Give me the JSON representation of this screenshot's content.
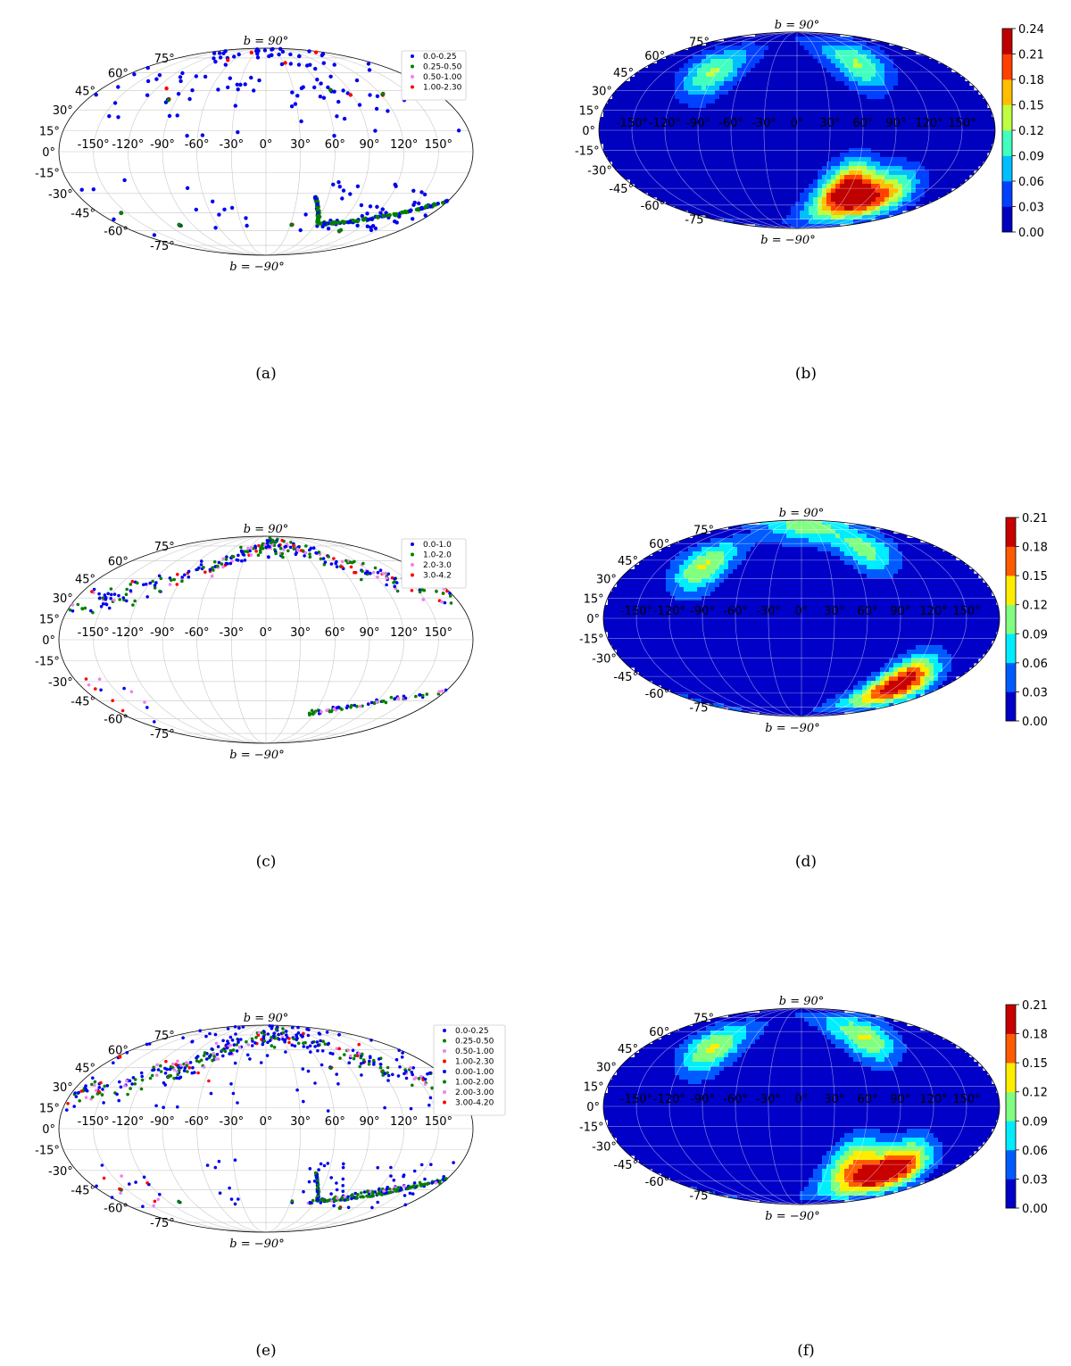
{
  "chart_data": [
    {
      "panel": "a",
      "type": "scatter",
      "projection": "mollweide",
      "caption": "(a)",
      "lat_ticks": [
        "75°",
        "60°",
        "45°",
        "30°",
        "15°",
        "0°",
        "-15°",
        "-30°",
        "-45°",
        "-60°",
        "-75°"
      ],
      "lon_ticks": [
        "-150°",
        "-120°",
        "-90°",
        "-60°",
        "-30°",
        "0°",
        "30°",
        "60°",
        "90°",
        "120°",
        "150°"
      ],
      "north_label": "b = 90°",
      "south_label": "b = −90°",
      "legend": [
        {
          "label": "0.0-0.25",
          "color": "#0000ee"
        },
        {
          "label": "0.25-0.50",
          "color": "#008000"
        },
        {
          "label": "0.50-1.00",
          "color": "#ee82ee"
        },
        {
          "label": "1.00-2.30",
          "color": "#ff0000"
        }
      ],
      "legend_placement": "top-right",
      "grid": true
    },
    {
      "panel": "b",
      "type": "heatmap",
      "projection": "mollweide",
      "caption": "(b)",
      "lat_ticks": [
        "75°",
        "60°",
        "45°",
        "30°",
        "15°",
        "0°",
        "-15°",
        "-30°",
        "-45°",
        "-60°",
        "-75°"
      ],
      "lon_ticks": [
        "-150°",
        "-120°",
        "-90°",
        "-60°",
        "-30°",
        "0°",
        "30°",
        "60°",
        "90°",
        "120°",
        "150°"
      ],
      "north_label": "b = 90°",
      "south_label": "b = −90°",
      "colorbar_ticks": [
        "0.00",
        "0.03",
        "0.06",
        "0.09",
        "0.12",
        "0.15",
        "0.18",
        "0.21",
        "0.24"
      ],
      "colorbar_range": [
        0,
        0.24
      ],
      "hotspots": [
        {
          "lon": 58,
          "lat": -47,
          "value": 0.24
        },
        {
          "lon": 105,
          "lat": -52,
          "value": 0.15
        },
        {
          "lon": -95,
          "lat": 45,
          "value": 0.12
        },
        {
          "lon": 75,
          "lat": 52,
          "value": 0.12
        }
      ],
      "grid": true
    },
    {
      "panel": "c",
      "type": "scatter",
      "projection": "mollweide",
      "caption": "(c)",
      "lat_ticks": [
        "75°",
        "60°",
        "45°",
        "30°",
        "15°",
        "0°",
        "-15°",
        "-30°",
        "-45°",
        "-60°",
        "-75°"
      ],
      "lon_ticks": [
        "-150°",
        "-120°",
        "-90°",
        "-60°",
        "-30°",
        "0°",
        "30°",
        "60°",
        "90°",
        "120°",
        "150°"
      ],
      "north_label": "b = 90°",
      "south_label": "b = −90°",
      "legend": [
        {
          "label": "0.0-1.0",
          "color": "#0000ee"
        },
        {
          "label": "1.0-2.0",
          "color": "#008000"
        },
        {
          "label": "2.0-3.0",
          "color": "#ee82ee"
        },
        {
          "label": "3.0-4.2",
          "color": "#ff0000"
        }
      ],
      "legend_placement": "top-right",
      "grid": true
    },
    {
      "panel": "d",
      "type": "heatmap",
      "projection": "mollweide",
      "caption": "(d)",
      "lat_ticks": [
        "75°",
        "60°",
        "45°",
        "30°",
        "15°",
        "0°",
        "-15°",
        "-30°",
        "-45°",
        "-60°",
        "-75°"
      ],
      "lon_ticks": [
        "-150°",
        "-120°",
        "-90°",
        "-60°",
        "-30°",
        "0°",
        "30°",
        "60°",
        "90°",
        "120°",
        "150°"
      ],
      "north_label": "b = 90°",
      "south_label": "b = −90°",
      "colorbar_ticks": [
        "0.00",
        "0.03",
        "0.06",
        "0.09",
        "0.12",
        "0.15",
        "0.18",
        "0.21"
      ],
      "colorbar_range": [
        0,
        0.21
      ],
      "hotspots": [
        {
          "lon": 120,
          "lat": -52,
          "value": 0.21
        },
        {
          "lon": -105,
          "lat": 40,
          "value": 0.12
        },
        {
          "lon": 80,
          "lat": 55,
          "value": 0.1
        },
        {
          "lon": 0,
          "lat": 80,
          "value": 0.08
        }
      ],
      "grid": true
    },
    {
      "panel": "e",
      "type": "scatter",
      "projection": "mollweide",
      "caption": "(e)",
      "lat_ticks": [
        "75°",
        "60°",
        "45°",
        "30°",
        "15°",
        "0°",
        "-15°",
        "-30°",
        "-45°",
        "-60°",
        "-75°"
      ],
      "lon_ticks": [
        "-150°",
        "-120°",
        "-90°",
        "-60°",
        "-30°",
        "0°",
        "30°",
        "60°",
        "90°",
        "120°",
        "150°"
      ],
      "north_label": "b = 90°",
      "south_label": "b = −90°",
      "legend": [
        {
          "label": "0.0-0.25",
          "color": "#0000ee"
        },
        {
          "label": "0.25-0.50",
          "color": "#008000"
        },
        {
          "label": "0.50-1.00",
          "color": "#ee82ee"
        },
        {
          "label": "1.00-2.30",
          "color": "#ff0000"
        },
        {
          "label": "0.00-1.00",
          "color": "#0000ee"
        },
        {
          "label": "1.00-2.00",
          "color": "#008000"
        },
        {
          "label": "2.00-3.00",
          "color": "#ee82ee"
        },
        {
          "label": "3.00-4.20",
          "color": "#ff0000"
        }
      ],
      "legend_placement": "top-right",
      "grid": true
    },
    {
      "panel": "f",
      "type": "heatmap",
      "projection": "mollweide",
      "caption": "(f)",
      "lat_ticks": [
        "75°",
        "60°",
        "45°",
        "30°",
        "15°",
        "0°",
        "-15°",
        "-30°",
        "-45°",
        "-60°",
        "-75°"
      ],
      "lon_ticks": [
        "-150°",
        "-120°",
        "-90°",
        "-60°",
        "-30°",
        "0°",
        "30°",
        "60°",
        "90°",
        "120°",
        "150°"
      ],
      "north_label": "b = 90°",
      "south_label": "b = −90°",
      "colorbar_ticks": [
        "0.00",
        "0.03",
        "0.06",
        "0.09",
        "0.12",
        "0.15",
        "0.18",
        "0.21"
      ],
      "colorbar_range": [
        0,
        0.21
      ],
      "hotspots": [
        {
          "lon": 110,
          "lat": -50,
          "value": 0.21
        },
        {
          "lon": 60,
          "lat": -45,
          "value": 0.14
        },
        {
          "lon": -100,
          "lat": 45,
          "value": 0.12
        },
        {
          "lon": 80,
          "lat": 55,
          "value": 0.12
        }
      ],
      "grid": true
    }
  ]
}
